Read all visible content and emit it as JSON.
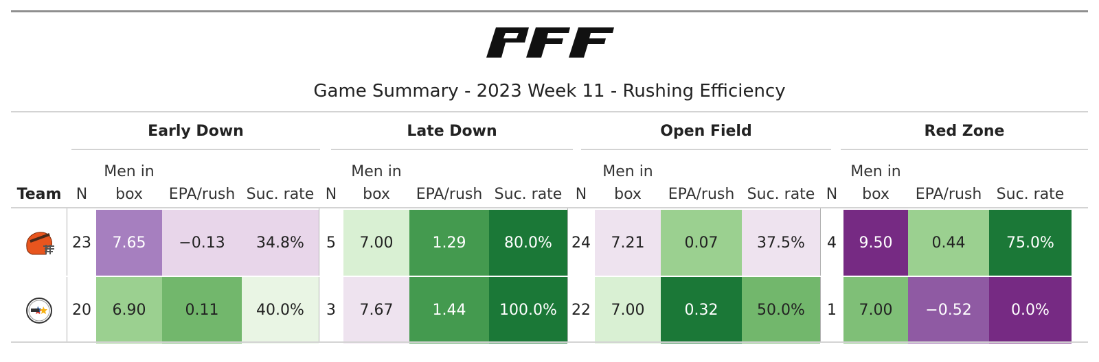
{
  "title": "Game Summary - 2023 Week 11 - Rushing Efficiency",
  "brand": "PFF",
  "team_header": "Team",
  "groups": [
    {
      "label": "Early Down"
    },
    {
      "label": "Late Down"
    },
    {
      "label": "Open Field"
    },
    {
      "label": "Red Zone"
    }
  ],
  "subcolumns": {
    "n": "N",
    "men_in_box": "Men in box",
    "epa": "EPA/rush",
    "suc": "Suc. rate"
  },
  "rows": [
    {
      "team_icon": "cleveland-browns-helmet-icon",
      "cells": [
        {
          "value": "23",
          "bg": "#ffffff",
          "fg": "#222222"
        },
        {
          "value": "7.65",
          "bg": "#a67fbf",
          "fg": "#ffffff"
        },
        {
          "value": "−0.13",
          "bg": "#e8d6ea",
          "fg": "#222222"
        },
        {
          "value": "34.8%",
          "bg": "#e8d6ea",
          "fg": "#222222"
        },
        {
          "value": "5",
          "bg": "#ffffff",
          "fg": "#222222"
        },
        {
          "value": "7.00",
          "bg": "#d9f0d3",
          "fg": "#222222"
        },
        {
          "value": "1.29",
          "bg": "#449a4f",
          "fg": "#ffffff"
        },
        {
          "value": "80.0%",
          "bg": "#1b7837",
          "fg": "#ffffff"
        },
        {
          "value": "24",
          "bg": "#ffffff",
          "fg": "#222222"
        },
        {
          "value": "7.21",
          "bg": "#eee3ef",
          "fg": "#222222"
        },
        {
          "value": "0.07",
          "bg": "#9bd090",
          "fg": "#222222"
        },
        {
          "value": "37.5%",
          "bg": "#eee3ef",
          "fg": "#222222"
        },
        {
          "value": "4",
          "bg": "#ffffff",
          "fg": "#222222"
        },
        {
          "value": "9.50",
          "bg": "#762a83",
          "fg": "#ffffff"
        },
        {
          "value": "0.44",
          "bg": "#9bd090",
          "fg": "#222222"
        },
        {
          "value": "75.0%",
          "bg": "#1b7837",
          "fg": "#ffffff"
        }
      ]
    },
    {
      "team_icon": "pittsburgh-steelers-helmet-icon",
      "cells": [
        {
          "value": "20",
          "bg": "#ffffff",
          "fg": "#222222"
        },
        {
          "value": "6.90",
          "bg": "#9bd090",
          "fg": "#222222"
        },
        {
          "value": "0.11",
          "bg": "#72b76c",
          "fg": "#222222"
        },
        {
          "value": "40.0%",
          "bg": "#e9f5e4",
          "fg": "#222222"
        },
        {
          "value": "3",
          "bg": "#ffffff",
          "fg": "#222222"
        },
        {
          "value": "7.67",
          "bg": "#eee3ef",
          "fg": "#222222"
        },
        {
          "value": "1.44",
          "bg": "#449a4f",
          "fg": "#ffffff"
        },
        {
          "value": "100.0%",
          "bg": "#1b7837",
          "fg": "#ffffff"
        },
        {
          "value": "22",
          "bg": "#ffffff",
          "fg": "#222222"
        },
        {
          "value": "7.00",
          "bg": "#d9f0d3",
          "fg": "#222222"
        },
        {
          "value": "0.32",
          "bg": "#1b7837",
          "fg": "#ffffff"
        },
        {
          "value": "50.0%",
          "bg": "#72b76c",
          "fg": "#222222"
        },
        {
          "value": "1",
          "bg": "#ffffff",
          "fg": "#222222"
        },
        {
          "value": "7.00",
          "bg": "#7fbf77",
          "fg": "#222222"
        },
        {
          "value": "−0.52",
          "bg": "#8f5aa3",
          "fg": "#ffffff"
        },
        {
          "value": "0.0%",
          "bg": "#762a83",
          "fg": "#ffffff"
        }
      ]
    }
  ]
}
